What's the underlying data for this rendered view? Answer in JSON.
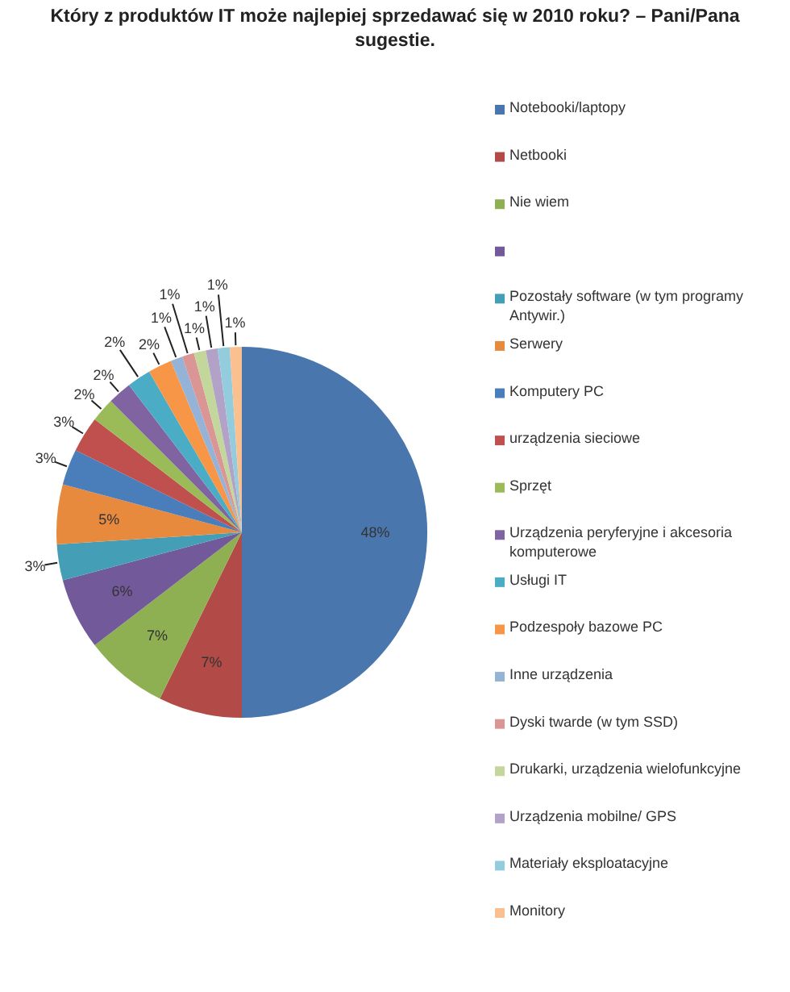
{
  "chart_data": {
    "type": "pie",
    "title": "Który z produktów IT może najlepiej sprzedawać się w 2010 roku? – Pani/Pana sugestie.",
    "categories": [
      "Notebooki/laptopy",
      "Netbooki",
      "Nie wiem",
      null,
      "Pozostały software (w tym programy Antywir.)",
      "Serwery",
      "Komputery PC",
      "urządzenia sieciowe",
      "Sprzęt",
      "Urządzenia peryferyjne i akcesoria komputerowe",
      "Usługi IT",
      "Podzespoły bazowe PC",
      "Inne urządzenia",
      "Dyski twarde (w tym SSD)",
      "Drukarki, urządzenia wielofunkcyjne",
      "Urządzenia mobilne/ GPS",
      "Materiały eksploatacyjne",
      "Monitory"
    ],
    "values": [
      48,
      7,
      7,
      6,
      3,
      5,
      3,
      3,
      2,
      2,
      2,
      2,
      1,
      1,
      1,
      1,
      1,
      1
    ],
    "value_labels": [
      "48%",
      "7%",
      "7%",
      "6%",
      "3%",
      "5%",
      "3%",
      "3%",
      "2%",
      "2%",
      "2%",
      "2%",
      "1%",
      "1%",
      "1%",
      "1%",
      "1%",
      "1%"
    ],
    "colors": [
      "#4a76ae",
      "#b24a47",
      "#8fb052",
      "#72599a",
      "#449eb6",
      "#e88a3e",
      "#4a7ebb",
      "#c0504d",
      "#9bbb59",
      "#8064a2",
      "#4bacc6",
      "#f79646",
      "#95b3d7",
      "#d99694",
      "#c3d69b",
      "#b3a2c7",
      "#93cddd",
      "#fac090"
    ],
    "legend": "right"
  }
}
